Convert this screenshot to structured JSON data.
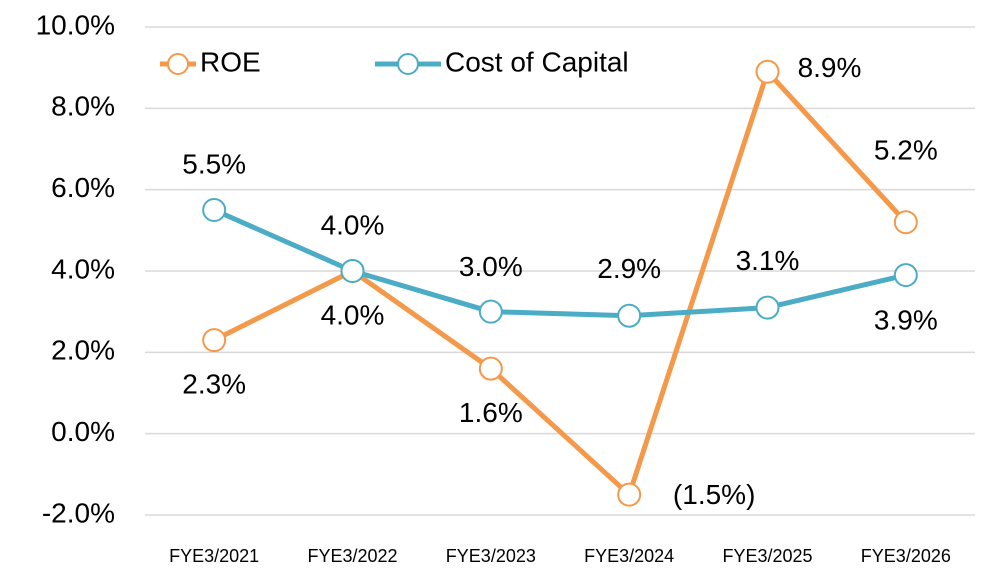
{
  "chart_data": {
    "type": "line",
    "categories": [
      "FYE3/2021",
      "FYE3/2022",
      "FYE3/2023",
      "FYE3/2024",
      "FYE3/2025",
      "FYE3/2026"
    ],
    "series": [
      {
        "name": "ROE",
        "color": "#f4984a",
        "values": [
          2.3,
          4.0,
          1.6,
          -1.5,
          8.9,
          5.2
        ],
        "value_labels": [
          "2.3%",
          "4.0%",
          "1.6%",
          "(1.5%)",
          "8.9%",
          "5.2%"
        ]
      },
      {
        "name": "Cost of Capital",
        "color": "#4bacc6",
        "values": [
          5.5,
          4.0,
          3.0,
          2.9,
          3.1,
          3.9
        ],
        "value_labels": [
          "5.5%",
          "4.0%",
          "3.0%",
          "2.9%",
          "3.1%",
          "3.9%"
        ]
      }
    ],
    "ylim": [
      -2,
      10
    ],
    "yticks": [
      {
        "value": -2,
        "label": "-2.0%"
      },
      {
        "value": 0,
        "label": "0.0%"
      },
      {
        "value": 2,
        "label": "2.0%"
      },
      {
        "value": 4,
        "label": "4.0%"
      },
      {
        "value": 6,
        "label": "6.0%"
      },
      {
        "value": 8,
        "label": "8.0%"
      },
      {
        "value": 10,
        "label": "10.0%"
      }
    ],
    "grid": true,
    "legend": "top"
  }
}
